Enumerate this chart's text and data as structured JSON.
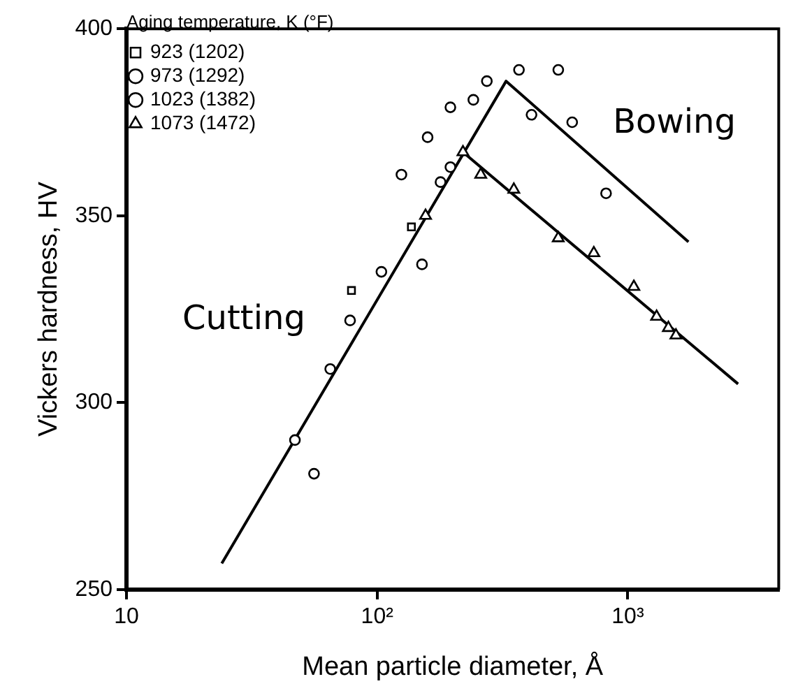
{
  "chart_data": {
    "type": "scatter",
    "xlabel": "Mean particle diameter, Å",
    "ylabel": "Vickers hardness, HV",
    "legend_title": "Aging temperature, K (°F)",
    "log": "x",
    "xlim": [
      10,
      4000
    ],
    "xticks": [
      10,
      {
        "value": 100,
        "label": "10²"
      },
      {
        "value": 1000,
        "label": "10³"
      }
    ],
    "ylim": [
      250,
      400
    ],
    "yticks": [
      250,
      300,
      350,
      400
    ],
    "grid": false,
    "legend": "top left",
    "series": [
      {
        "name": "923 (1202)",
        "color": "#000000",
        "marker": "square",
        "x": [
          79,
          137
        ],
        "values": [
          330,
          347
        ]
      },
      {
        "name": "973 (1292)",
        "color": "#000000",
        "marker": "circle",
        "x": [
          125,
          159,
          196,
          242
        ],
        "values": [
          361,
          371,
          379,
          381
        ]
      },
      {
        "name": "1023 (1382)",
        "color": "#000000",
        "marker": "circle",
        "x": [
          47,
          56,
          65,
          78,
          104,
          151,
          179,
          196,
          274,
          368,
          413,
          528,
          600,
          819
        ],
        "values": [
          290,
          281,
          309,
          322,
          335,
          337,
          359,
          363,
          386,
          389,
          377,
          389,
          375,
          356
        ]
      },
      {
        "name": "1073 (1472)",
        "color": "#000000",
        "marker": "triangle",
        "x": [
          156,
          220,
          259,
          351,
          528,
          732,
          1057,
          1303,
          1452,
          1556
        ],
        "values": [
          350,
          367,
          361,
          357,
          344,
          340,
          331,
          323,
          320,
          318
        ]
      },
      {
        "type": "line",
        "color": "#000000",
        "marker": "none",
        "x": [
          24,
          327,
          1746
        ],
        "values": [
          257,
          386,
          343
        ]
      },
      {
        "type": "line",
        "color": "#000000",
        "marker": "none",
        "x": [
          220,
          2754
        ],
        "values": [
          367,
          305
        ]
      }
    ],
    "annotations": [
      "Cutting",
      "Bowing"
    ]
  }
}
